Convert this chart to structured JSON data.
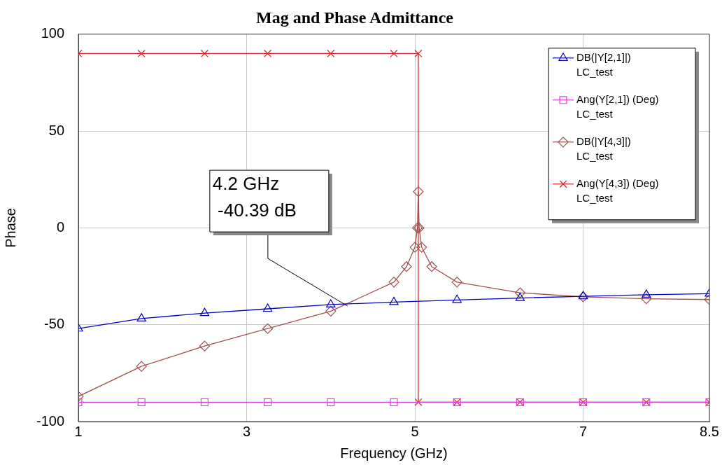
{
  "chart_data": {
    "type": "line",
    "title": "Mag and Phase Admittance",
    "xlabel": "Frequency (GHz)",
    "ylabel": "Phase",
    "xlim": [
      1,
      8.5
    ],
    "xticks": [
      1,
      3,
      5,
      7,
      8.5
    ],
    "ylim": [
      -100,
      100
    ],
    "yticks": [
      -100,
      -50,
      0,
      50,
      100
    ],
    "grid": true,
    "legend": "top right",
    "series": [
      {
        "name": "DB(|Y[2,1]|)\nLC_test",
        "color": "#0000c0",
        "marker": "triangle",
        "x": [
          1,
          1.75,
          2.5,
          3.25,
          4,
          4.75,
          5.5,
          6.25,
          7,
          7.75,
          8.5
        ],
        "values": [
          -52,
          -46.8,
          -44,
          -41.8,
          -39.6,
          -38.3,
          -37.2,
          -36.2,
          -35.3,
          -34.5,
          -34
        ]
      },
      {
        "name": "Ang(Y[2,1]) (Deg)\nLC_test",
        "color": "#e040e0",
        "marker": "square",
        "x": [
          1,
          1.75,
          2.5,
          3.25,
          4,
          4.75,
          5.5,
          6.25,
          7,
          7.75,
          8.5
        ],
        "values": [
          -90,
          -90,
          -90,
          -90,
          -90,
          -90,
          -90,
          -90,
          -90,
          -90,
          -90
        ]
      },
      {
        "name": "DB(|Y[4,3]|)\nLC_test",
        "color": "#a05050",
        "marker": "diamond",
        "x": [
          1,
          1.75,
          2.5,
          3.25,
          4,
          4.75,
          4.9,
          5,
          5.03,
          5.04,
          5.05,
          5.08,
          5.2,
          5.5,
          6.25,
          7,
          7.75,
          8.5
        ],
        "values": [
          -87,
          -71.5,
          -61,
          -52,
          -43,
          -28,
          -20,
          -10,
          0,
          18.7,
          0,
          -10,
          -20,
          -28,
          -33.5,
          -35.6,
          -36.6,
          -37
        ]
      },
      {
        "name": "Ang(Y[4,3]) (Deg)\nLC_test",
        "color": "#e02020",
        "marker": "cross",
        "x": [
          1,
          1.75,
          2.5,
          3.25,
          4,
          4.75,
          5.04,
          5.04,
          5.5,
          6.25,
          7,
          7.75,
          8.5
        ],
        "values": [
          90,
          90,
          90,
          90,
          90,
          90,
          90,
          -90,
          -90,
          -90,
          -90,
          -90,
          -90
        ]
      }
    ],
    "annotations": [
      {
        "text": "4.2 GHz\n -40.39 dB",
        "x": 4.2,
        "y": -40.39
      }
    ]
  }
}
